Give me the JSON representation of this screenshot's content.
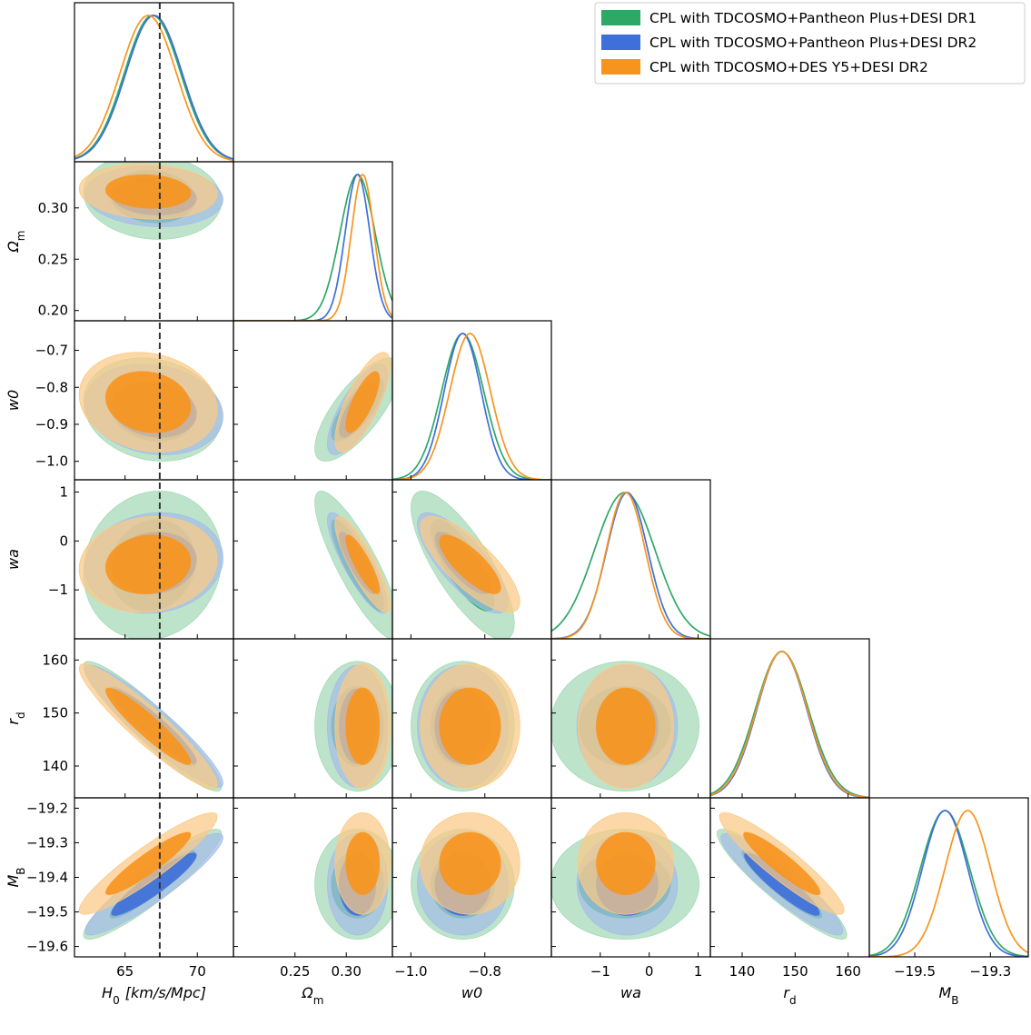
{
  "chart_data": {
    "type": "triangle-corner-plot",
    "parameters": [
      {
        "key": "H0",
        "label": "H",
        "sub": "0",
        "unit": "[km/s/Mpc]",
        "range": [
          61.5,
          72.5
        ],
        "ticks": [
          65,
          70
        ],
        "tick_labels": [
          "65",
          "70"
        ]
      },
      {
        "key": "Om",
        "label": "Ω",
        "sub": "m",
        "unit": "",
        "range": [
          0.19,
          0.345
        ],
        "ticks": [
          0.2,
          0.25,
          0.3
        ],
        "tick_labels": [
          "0.20",
          "0.25",
          "0.30"
        ]
      },
      {
        "key": "w0",
        "label": "w0",
        "sub": "",
        "unit": "",
        "range": [
          -1.05,
          -0.62
        ],
        "ticks": [
          -1.0,
          -0.9,
          -0.8,
          -0.7
        ],
        "tick_labels": [
          "−1.0",
          "−0.9",
          "−0.8",
          "−0.7"
        ]
      },
      {
        "key": "wa",
        "label": "wa",
        "sub": "",
        "unit": "",
        "range": [
          -2.0,
          1.25
        ],
        "ticks": [
          -1,
          0,
          1
        ],
        "tick_labels": [
          "−1",
          "0",
          "1"
        ]
      },
      {
        "key": "rd",
        "label": "r",
        "sub": "d",
        "unit": "",
        "range": [
          134,
          164
        ],
        "ticks": [
          140,
          150,
          160
        ],
        "tick_labels": [
          "140",
          "150",
          "160"
        ]
      },
      {
        "key": "MB",
        "label": "M",
        "sub": "B",
        "unit": "",
        "range": [
          -19.63,
          -19.17
        ],
        "ticks": [
          -19.6,
          -19.5,
          -19.4,
          -19.3,
          -19.2
        ],
        "tick_labels": [
          "−19.6",
          "−19.5",
          "−19.4",
          "−19.3",
          "−19.2"
        ]
      }
    ],
    "x_tick_overrides": {
      "Om": {
        "ticks": [
          0.25,
          0.3
        ],
        "tick_labels": [
          "0.25",
          "0.30"
        ]
      },
      "w0": {
        "ticks": [
          -1.0,
          -0.8
        ],
        "tick_labels": [
          "−1.0",
          "−0.8"
        ]
      },
      "MB": {
        "ticks": [
          -19.5,
          -19.3
        ],
        "tick_labels": [
          "−19.5",
          "−19.3"
        ]
      }
    },
    "x_ranges": {
      "MB": [
        -19.62,
        -19.2
      ]
    },
    "reference_line": {
      "parameter": "H0",
      "value": 67.4,
      "style": "dashed",
      "color": "#333333"
    },
    "series": [
      {
        "name": "CPL with TDCOSMO+Pantheon Plus+DESI DR1",
        "color": "#2ea866",
        "light": "#a3d9b5",
        "mean": {
          "H0": 66.9,
          "Om": 0.311,
          "w0": -0.86,
          "wa": -0.5,
          "rd": 147.5,
          "MB": -19.42
        },
        "sigma": {
          "H0": 1.95,
          "Om": 0.017,
          "w0": 0.057,
          "wa": 0.62,
          "rd": 5.0,
          "MB": 0.065
        }
      },
      {
        "name": "CPL with TDCOSMO+Pantheon Plus+DESI DR2",
        "color": "#3f6fd9",
        "light": "#a5bde8",
        "mean": {
          "H0": 67.0,
          "Om": 0.311,
          "w0": -0.86,
          "wa": -0.45,
          "rd": 147.5,
          "MB": -19.42
        },
        "sigma": {
          "H0": 1.95,
          "Om": 0.012,
          "w0": 0.05,
          "wa": 0.42,
          "rd": 4.7,
          "MB": 0.06
        }
      },
      {
        "name": "CPL with TDCOSMO+DES Y5+DESI DR2",
        "color": "#f7941d",
        "light": "#fbc986",
        "mean": {
          "H0": 66.6,
          "Om": 0.316,
          "w0": -0.84,
          "wa": -0.48,
          "rd": 147.5,
          "MB": -19.36
        },
        "sigma": {
          "H0": 1.95,
          "Om": 0.011,
          "w0": 0.055,
          "wa": 0.4,
          "rd": 4.8,
          "MB": 0.06
        }
      }
    ],
    "correlations": {
      "H0|rd": -0.93,
      "H0|MB": 0.92,
      "rd|MB": -0.92,
      "Om|w0": 0.75,
      "Om|wa": -0.85,
      "w0|wa": -0.78,
      "H0|w0": -0.15,
      "H0|Om": -0.1,
      "H0|wa": 0.1,
      "Om|rd": 0.0,
      "Om|MB": 0.0,
      "w0|rd": 0.0,
      "w0|MB": 0.0,
      "wa|rd": 0.0,
      "wa|MB": 0.0
    },
    "legend_position": "top-right"
  }
}
